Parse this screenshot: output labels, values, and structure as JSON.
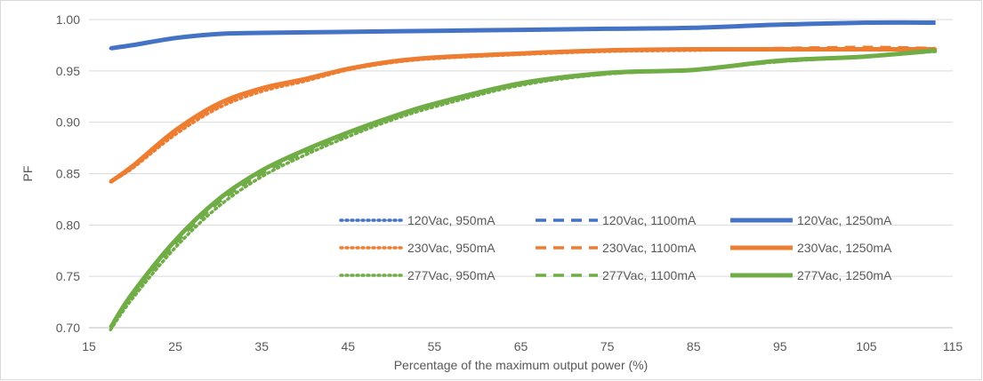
{
  "chart_data": {
    "type": "line",
    "title": "",
    "xlabel": "Percentage of the maximum output power  (%)",
    "ylabel": "PF",
    "xlim": [
      15,
      115
    ],
    "ylim": [
      0.7,
      1.0
    ],
    "x_ticks": [
      "15",
      "25",
      "35",
      "45",
      "55",
      "65",
      "75",
      "85",
      "95",
      "105",
      "115"
    ],
    "y_ticks": [
      "0.70",
      "0.75",
      "0.80",
      "0.85",
      "0.90",
      "0.95",
      "1.00"
    ],
    "grid": "horizontal",
    "legend_position": "inside-lower-right",
    "colors": {
      "120Vac": "#4472c4",
      "230Vac": "#ed7d31",
      "277Vac": "#70ad47"
    },
    "series": [
      {
        "name": "120Vac, 950mA",
        "style": "dotted",
        "color": "#4472c4",
        "x": [
          17.5,
          20,
          25,
          30,
          35,
          45,
          55,
          65,
          75,
          85,
          95,
          105,
          113
        ],
        "y": [
          0.972,
          0.975,
          0.982,
          0.986,
          0.987,
          0.988,
          0.989,
          0.99,
          0.991,
          0.992,
          0.995,
          0.997,
          0.997
        ]
      },
      {
        "name": "120Vac, 1100mA",
        "style": "dashed",
        "color": "#4472c4",
        "x": [
          17.5,
          20,
          25,
          30,
          35,
          45,
          55,
          65,
          75,
          85,
          95,
          105,
          113
        ],
        "y": [
          0.972,
          0.975,
          0.982,
          0.986,
          0.987,
          0.988,
          0.989,
          0.99,
          0.991,
          0.992,
          0.995,
          0.997,
          0.997
        ]
      },
      {
        "name": "120Vac, 1250mA",
        "style": "solid",
        "color": "#4472c4",
        "x": [
          17.5,
          20,
          25,
          30,
          35,
          45,
          55,
          65,
          75,
          85,
          95,
          105,
          113
        ],
        "y": [
          0.972,
          0.975,
          0.982,
          0.986,
          0.987,
          0.988,
          0.989,
          0.99,
          0.991,
          0.992,
          0.995,
          0.997,
          0.997
        ]
      },
      {
        "name": "230Vac, 950mA",
        "style": "dotted",
        "color": "#ed7d31",
        "x": [
          17.5,
          20,
          25,
          30,
          35,
          40,
          45,
          50,
          55,
          65,
          75,
          85,
          95,
          105,
          113
        ],
        "y": [
          0.842,
          0.855,
          0.888,
          0.914,
          0.93,
          0.94,
          0.951,
          0.958,
          0.962,
          0.966,
          0.969,
          0.97,
          0.971,
          0.971,
          0.971
        ]
      },
      {
        "name": "230Vac, 1100mA",
        "style": "dashed",
        "color": "#ed7d31",
        "x": [
          17.5,
          20,
          25,
          30,
          35,
          40,
          45,
          50,
          55,
          65,
          75,
          85,
          95,
          105,
          113
        ],
        "y": [
          0.842,
          0.856,
          0.89,
          0.916,
          0.932,
          0.941,
          0.952,
          0.959,
          0.963,
          0.967,
          0.97,
          0.971,
          0.972,
          0.973,
          0.972
        ]
      },
      {
        "name": "230Vac, 1250mA",
        "style": "solid",
        "color": "#ed7d31",
        "x": [
          17.5,
          20,
          25,
          30,
          35,
          40,
          45,
          50,
          55,
          65,
          75,
          85,
          95,
          105,
          113
        ],
        "y": [
          0.842,
          0.857,
          0.892,
          0.918,
          0.933,
          0.942,
          0.952,
          0.959,
          0.963,
          0.967,
          0.97,
          0.971,
          0.971,
          0.971,
          0.971
        ]
      },
      {
        "name": "277Vac, 950mA",
        "style": "dotted",
        "color": "#70ad47",
        "x": [
          17.5,
          20,
          25,
          30,
          35,
          40,
          45,
          50,
          55,
          65,
          75,
          85,
          95,
          105,
          113
        ],
        "y": [
          0.698,
          0.728,
          0.778,
          0.818,
          0.847,
          0.868,
          0.886,
          0.902,
          0.915,
          0.936,
          0.947,
          0.951,
          0.959,
          0.964,
          0.969
        ]
      },
      {
        "name": "277Vac, 1100mA",
        "style": "dashed",
        "color": "#70ad47",
        "x": [
          17.5,
          20,
          25,
          30,
          35,
          40,
          45,
          50,
          55,
          65,
          75,
          85,
          95,
          105,
          113
        ],
        "y": [
          0.699,
          0.731,
          0.782,
          0.822,
          0.85,
          0.871,
          0.888,
          0.904,
          0.917,
          0.937,
          0.947,
          0.951,
          0.959,
          0.964,
          0.969
        ]
      },
      {
        "name": "277Vac, 1250mA",
        "style": "solid",
        "color": "#70ad47",
        "x": [
          17.5,
          20,
          25,
          30,
          35,
          40,
          45,
          50,
          55,
          65,
          75,
          85,
          95,
          105,
          113
        ],
        "y": [
          0.7,
          0.733,
          0.785,
          0.825,
          0.853,
          0.873,
          0.89,
          0.905,
          0.918,
          0.938,
          0.948,
          0.951,
          0.96,
          0.964,
          0.97
        ]
      }
    ]
  }
}
